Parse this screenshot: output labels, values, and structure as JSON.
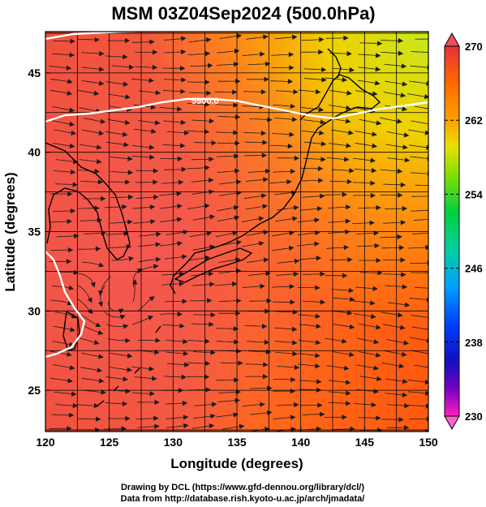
{
  "figure": {
    "title": "MSM 03Z04Sep2024 (500.0hPa)",
    "xlabel": "Longitude (degrees)",
    "ylabel": "Latitude  (degrees)",
    "x_ticks": [
      "120",
      "125",
      "130",
      "135",
      "140",
      "145",
      "150"
    ],
    "y_ticks": [
      "25",
      "30",
      "35",
      "40",
      "45"
    ],
    "x_range": [
      120,
      150
    ],
    "y_range": [
      22.4,
      47.6
    ],
    "contour_label": "5900.0",
    "credit_line1": "Drawing by DCL (https://www.gfd-dennou.org/library/dcl/)",
    "credit_line2": "Data from http://database.rish.kyoto-u.ac.jp/arch/jmadata/"
  },
  "colorbar": {
    "ticks": [
      "270",
      "262",
      "254",
      "246",
      "238",
      "230"
    ],
    "range": [
      230,
      270
    ],
    "colors_top_to_bottom": [
      "#e8303a",
      "#ff6a00",
      "#ffa000",
      "#e8e000",
      "#80e000",
      "#00d040",
      "#00d0a0",
      "#00a0ff",
      "#0040ff",
      "#1010c0",
      "#8000c0",
      "#ff20c0"
    ]
  }
}
